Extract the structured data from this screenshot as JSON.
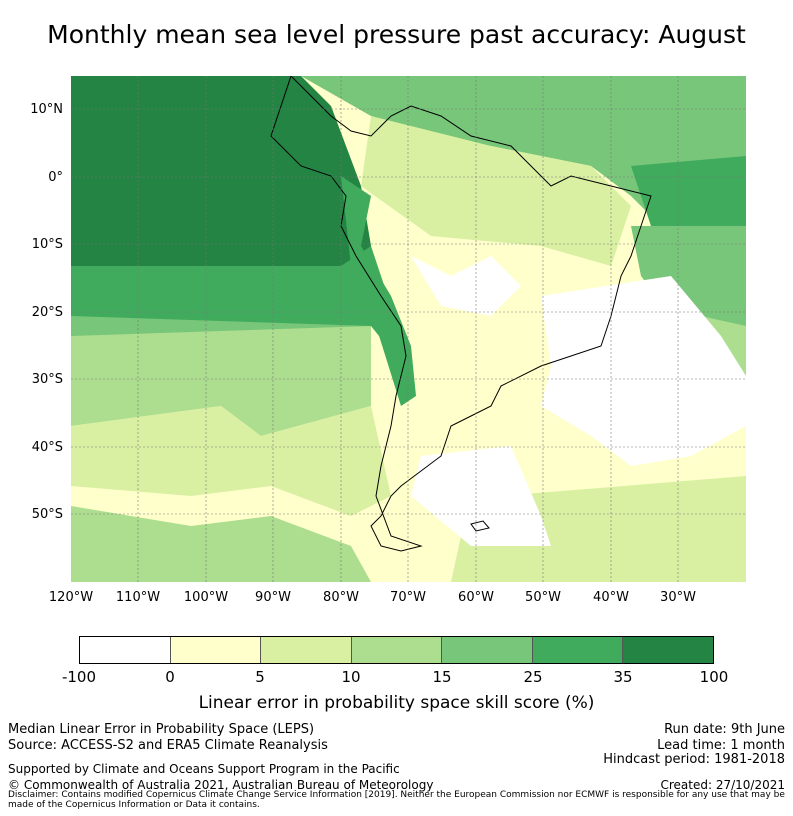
{
  "title": "Monthly mean sea level pressure past accuracy: August",
  "map": {
    "lat_labels": [
      "10°N",
      "0°",
      "10°S",
      "20°S",
      "30°S",
      "40°S",
      "50°S"
    ],
    "lon_labels": [
      "120°W",
      "110°W",
      "100°W",
      "90°W",
      "80°W",
      "70°W",
      "60°W",
      "50°W",
      "40°W",
      "30°W"
    ],
    "extent": {
      "lon": [
        -120,
        -20
      ],
      "lat": [
        -60,
        15
      ]
    }
  },
  "colorbar": {
    "ticks": [
      "-100",
      "0",
      "5",
      "10",
      "15",
      "25",
      "35",
      "100"
    ],
    "colors": [
      "#ffffff",
      "#ffffcc",
      "#d9f0a3",
      "#addd8e",
      "#78c679",
      "#41ab5d",
      "#238443"
    ],
    "label": "Linear error in probability space skill score (%)"
  },
  "footer": {
    "left1": "Median Linear Error in Probability Space (LEPS)",
    "left2": "Source: ACCESS-S2 and ERA5 Climate Reanalysis",
    "left3": "Supported by Climate and Oceans Support Program in the Pacific",
    "left4": "© Commonwealth of Australia 2021, Australian Bureau of Meteorology",
    "right1": "Run date: 9th June",
    "right2": "Lead time: 1 month",
    "right3": "Hindcast period: 1981-2018",
    "right4": "Created: 27/10/2021",
    "disclaimer": "Disclaimer: Contains modified Copernicus Climate Change Service Information [2019]. Neither the European Commission nor ECMWF is responsible for any use that may be made of the Copernicus Information or Data it contains."
  }
}
